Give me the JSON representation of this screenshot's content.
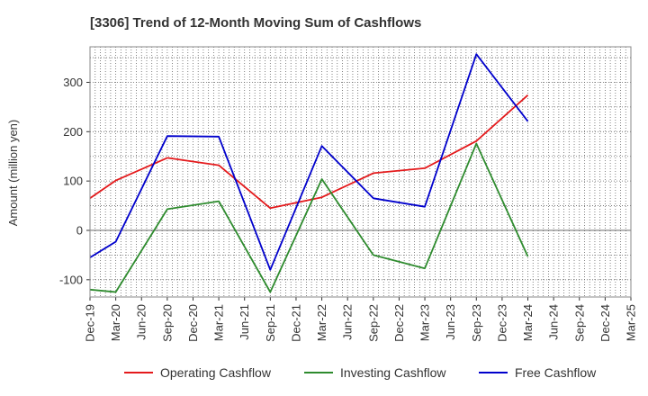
{
  "chart_data": {
    "type": "line",
    "title": "[3306]  Trend of 12-Month Moving Sum of Cashflows",
    "xlabel": "",
    "ylabel": "Amount (million yen)",
    "ylim": [
      -135,
      372
    ],
    "yticks": [
      -100,
      0,
      100,
      200,
      300
    ],
    "grid": true,
    "legend_position": "bottom",
    "categories": [
      "Dec-19",
      "Mar-20",
      "Jun-20",
      "Sep-20",
      "Dec-20",
      "Mar-21",
      "Jun-21",
      "Sep-21",
      "Dec-21",
      "Mar-22",
      "Jun-22",
      "Sep-22",
      "Dec-22",
      "Mar-23",
      "Jun-23",
      "Sep-23",
      "Dec-23",
      "Mar-24",
      "Jun-24",
      "Sep-24",
      "Dec-24",
      "Mar-25"
    ],
    "series": [
      {
        "name": "Operating Cashflow",
        "color": "#e41a1c",
        "values": [
          65,
          101,
          null,
          147,
          null,
          132,
          null,
          45,
          null,
          67,
          null,
          116,
          null,
          126,
          null,
          181,
          null,
          274,
          null,
          null,
          null,
          null
        ]
      },
      {
        "name": "Investing Cashflow",
        "color": "#2e8b2e",
        "values": [
          -120,
          -125,
          null,
          43,
          null,
          59,
          null,
          -125,
          null,
          104,
          null,
          -50,
          null,
          -77,
          null,
          176,
          null,
          -53,
          null,
          null,
          null,
          null
        ]
      },
      {
        "name": "Free Cashflow",
        "color": "#0000cc",
        "values": [
          -55,
          -23,
          null,
          191,
          null,
          190,
          null,
          -80,
          null,
          171,
          null,
          65,
          null,
          48,
          null,
          357,
          null,
          221,
          null,
          null,
          null,
          null
        ]
      }
    ]
  }
}
